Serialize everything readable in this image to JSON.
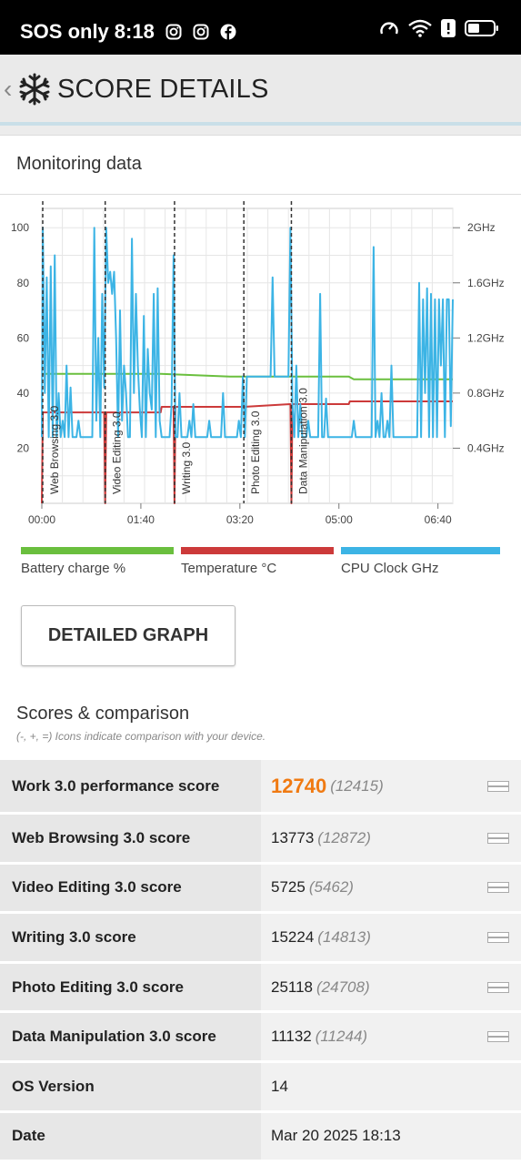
{
  "status_bar": {
    "carrier": "SOS only",
    "time": "8:18"
  },
  "header": {
    "title": "SCORE DETAILS"
  },
  "monitoring": {
    "title": "Monitoring data",
    "legend": [
      {
        "label": "Battery charge %",
        "color": "#6abf3e"
      },
      {
        "label": "Temperature °C",
        "color": "#cc3a3a"
      },
      {
        "label": "CPU Clock GHz",
        "color": "#3cb4e5"
      }
    ]
  },
  "detailed_graph_button": "DETAILED GRAPH",
  "chart_data": {
    "type": "line",
    "x_ticks": [
      "00:00",
      "01:40",
      "03:20",
      "05:00",
      "06:40"
    ],
    "y_left_ticks": [
      "20",
      "40",
      "60",
      "80",
      "100"
    ],
    "y_right_ticks": [
      "0.4GHz",
      "0.8GHz",
      "1.2GHz",
      "1.6GHz",
      "2GHz"
    ],
    "xlim_seconds": [
      0,
      415
    ],
    "ylim": [
      0,
      107
    ],
    "grid": true,
    "phases": [
      {
        "label": "Web Browsing 3.0",
        "start": 0
      },
      {
        "label": "Video Editing 3.0",
        "start": 64
      },
      {
        "label": "Writing 3.0",
        "start": 134
      },
      {
        "label": "Photo Editing 3.0",
        "start": 204
      },
      {
        "label": "Data Manipulation 3.0",
        "start": 252
      }
    ],
    "series": [
      {
        "name": "Battery charge %",
        "color": "#6abf3e",
        "points": [
          [
            0,
            47
          ],
          [
            120,
            47
          ],
          [
            190,
            46
          ],
          [
            310,
            46
          ],
          [
            315,
            45
          ],
          [
            415,
            45
          ]
        ]
      },
      {
        "name": "Temperature °C",
        "color": "#cc3a3a",
        "points": [
          [
            0,
            0
          ],
          [
            1,
            33
          ],
          [
            63,
            33
          ],
          [
            64,
            0
          ],
          [
            65,
            33
          ],
          [
            120,
            33
          ],
          [
            121,
            35
          ],
          [
            133,
            35
          ],
          [
            134,
            0
          ],
          [
            135,
            35
          ],
          [
            203,
            35
          ],
          [
            204,
            35
          ],
          [
            251,
            36
          ],
          [
            252,
            0
          ],
          [
            253,
            36
          ],
          [
            310,
            36
          ],
          [
            311,
            37
          ],
          [
            415,
            37
          ]
        ]
      },
      {
        "name": "CPU Clock GHz",
        "color": "#3cb4e5",
        "points": [
          [
            0,
            24
          ],
          [
            1,
            100
          ],
          [
            3,
            40
          ],
          [
            5,
            82
          ],
          [
            7,
            24
          ],
          [
            9,
            86
          ],
          [
            11,
            24
          ],
          [
            13,
            90
          ],
          [
            15,
            24
          ],
          [
            17,
            40
          ],
          [
            19,
            24
          ],
          [
            21,
            30
          ],
          [
            23,
            24
          ],
          [
            25,
            50
          ],
          [
            27,
            24
          ],
          [
            29,
            42
          ],
          [
            31,
            24
          ],
          [
            33,
            24
          ],
          [
            35,
            24
          ],
          [
            37,
            30
          ],
          [
            39,
            24
          ],
          [
            41,
            24
          ],
          [
            43,
            24
          ],
          [
            45,
            24
          ],
          [
            47,
            24
          ],
          [
            49,
            24
          ],
          [
            51,
            24
          ],
          [
            53,
            100
          ],
          [
            55,
            30
          ],
          [
            57,
            60
          ],
          [
            59,
            24
          ],
          [
            61,
            76
          ],
          [
            63,
            42
          ],
          [
            65,
            100
          ],
          [
            67,
            80
          ],
          [
            69,
            84
          ],
          [
            71,
            76
          ],
          [
            73,
            84
          ],
          [
            75,
            60
          ],
          [
            77,
            24
          ],
          [
            79,
            70
          ],
          [
            81,
            30
          ],
          [
            83,
            50
          ],
          [
            85,
            40
          ],
          [
            87,
            24
          ],
          [
            89,
            24
          ],
          [
            91,
            96
          ],
          [
            93,
            40
          ],
          [
            95,
            76
          ],
          [
            97,
            50
          ],
          [
            99,
            34
          ],
          [
            101,
            24
          ],
          [
            103,
            68
          ],
          [
            105,
            24
          ],
          [
            107,
            56
          ],
          [
            109,
            40
          ],
          [
            111,
            34
          ],
          [
            113,
            76
          ],
          [
            115,
            24
          ],
          [
            117,
            78
          ],
          [
            119,
            30
          ],
          [
            121,
            24
          ],
          [
            123,
            24
          ],
          [
            125,
            24
          ],
          [
            127,
            24
          ],
          [
            129,
            24
          ],
          [
            131,
            36
          ],
          [
            133,
            90
          ],
          [
            135,
            24
          ],
          [
            137,
            24
          ],
          [
            139,
            40
          ],
          [
            141,
            24
          ],
          [
            143,
            24
          ],
          [
            145,
            24
          ],
          [
            147,
            24
          ],
          [
            149,
            30
          ],
          [
            151,
            24
          ],
          [
            153,
            36
          ],
          [
            155,
            24
          ],
          [
            157,
            24
          ],
          [
            159,
            24
          ],
          [
            161,
            24
          ],
          [
            163,
            24
          ],
          [
            165,
            24
          ],
          [
            167,
            24
          ],
          [
            169,
            30
          ],
          [
            171,
            24
          ],
          [
            173,
            24
          ],
          [
            175,
            24
          ],
          [
            177,
            24
          ],
          [
            179,
            24
          ],
          [
            181,
            24
          ],
          [
            183,
            40
          ],
          [
            185,
            24
          ],
          [
            187,
            24
          ],
          [
            189,
            24
          ],
          [
            191,
            24
          ],
          [
            193,
            24
          ],
          [
            195,
            24
          ],
          [
            197,
            24
          ],
          [
            199,
            30
          ],
          [
            201,
            24
          ],
          [
            203,
            46
          ],
          [
            205,
            24
          ],
          [
            207,
            46
          ],
          [
            209,
            46
          ],
          [
            211,
            46
          ],
          [
            213,
            46
          ],
          [
            215,
            46
          ],
          [
            217,
            46
          ],
          [
            219,
            46
          ],
          [
            221,
            46
          ],
          [
            223,
            46
          ],
          [
            225,
            46
          ],
          [
            227,
            46
          ],
          [
            229,
            46
          ],
          [
            231,
            46
          ],
          [
            233,
            82
          ],
          [
            235,
            46
          ],
          [
            237,
            46
          ],
          [
            239,
            46
          ],
          [
            241,
            46
          ],
          [
            243,
            46
          ],
          [
            245,
            46
          ],
          [
            247,
            46
          ],
          [
            249,
            46
          ],
          [
            251,
            100
          ],
          [
            253,
            36
          ],
          [
            255,
            24
          ],
          [
            257,
            50
          ],
          [
            259,
            24
          ],
          [
            261,
            36
          ],
          [
            263,
            24
          ],
          [
            265,
            24
          ],
          [
            267,
            24
          ],
          [
            269,
            30
          ],
          [
            271,
            24
          ],
          [
            273,
            24
          ],
          [
            275,
            24
          ],
          [
            277,
            24
          ],
          [
            279,
            24
          ],
          [
            281,
            76
          ],
          [
            283,
            24
          ],
          [
            285,
            24
          ],
          [
            287,
            38
          ],
          [
            289,
            24
          ],
          [
            291,
            24
          ],
          [
            293,
            24
          ],
          [
            295,
            24
          ],
          [
            297,
            24
          ],
          [
            299,
            24
          ],
          [
            301,
            24
          ],
          [
            303,
            24
          ],
          [
            305,
            24
          ],
          [
            307,
            24
          ],
          [
            309,
            24
          ],
          [
            311,
            24
          ],
          [
            313,
            24
          ],
          [
            315,
            30
          ],
          [
            317,
            24
          ],
          [
            319,
            24
          ],
          [
            321,
            24
          ],
          [
            323,
            24
          ],
          [
            325,
            24
          ],
          [
            327,
            24
          ],
          [
            329,
            24
          ],
          [
            331,
            24
          ],
          [
            333,
            24
          ],
          [
            335,
            93
          ],
          [
            337,
            24
          ],
          [
            339,
            30
          ],
          [
            341,
            24
          ],
          [
            343,
            40
          ],
          [
            345,
            24
          ],
          [
            347,
            24
          ],
          [
            349,
            30
          ],
          [
            351,
            24
          ],
          [
            353,
            50
          ],
          [
            355,
            24
          ],
          [
            357,
            24
          ],
          [
            359,
            24
          ],
          [
            361,
            24
          ],
          [
            363,
            24
          ],
          [
            365,
            24
          ],
          [
            367,
            24
          ],
          [
            369,
            24
          ],
          [
            371,
            24
          ],
          [
            373,
            24
          ],
          [
            375,
            24
          ],
          [
            377,
            24
          ],
          [
            379,
            24
          ],
          [
            381,
            80
          ],
          [
            383,
            24
          ],
          [
            385,
            74
          ],
          [
            387,
            40
          ],
          [
            389,
            78
          ],
          [
            391,
            24
          ],
          [
            393,
            76
          ],
          [
            395,
            24
          ],
          [
            397,
            74
          ],
          [
            399,
            24
          ],
          [
            401,
            74
          ],
          [
            403,
            50
          ],
          [
            405,
            74
          ],
          [
            407,
            24
          ],
          [
            409,
            74
          ],
          [
            411,
            74
          ],
          [
            413,
            28
          ],
          [
            415,
            74
          ]
        ]
      }
    ]
  },
  "scores": {
    "title": "Scores & comparison",
    "subtitle": "(-, +, =) Icons indicate comparison with your device.",
    "rows": [
      {
        "label": "Work 3.0 performance score",
        "value": "12740",
        "compare": "(12415)"
      },
      {
        "label": "Web Browsing 3.0 score",
        "value": "13773",
        "compare": "(12872)"
      },
      {
        "label": "Video Editing 3.0 score",
        "value": "5725",
        "compare": "(5462)"
      },
      {
        "label": "Writing 3.0 score",
        "value": "15224",
        "compare": "(14813)"
      },
      {
        "label": "Photo Editing 3.0 score",
        "value": "25118",
        "compare": "(24708)"
      },
      {
        "label": "Data Manipulation 3.0 score",
        "value": "11132",
        "compare": "(11244)"
      },
      {
        "label": "OS Version",
        "value": "14",
        "compare": ""
      },
      {
        "label": "Date",
        "value": "Mar 20 2025 18:13",
        "compare": ""
      }
    ]
  }
}
